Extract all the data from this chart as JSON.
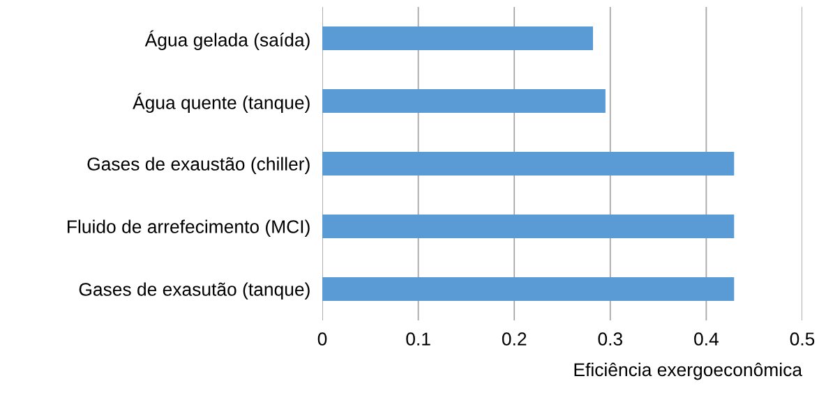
{
  "chart_data": {
    "type": "bar",
    "orientation": "horizontal",
    "categories": [
      "Água gelada (saída)",
      "Água quente (tanque)",
      "Gases de exaustão (chiller)",
      "Fluido de arrefecimento (MCI)",
      "Gases de exasutão (tanque)"
    ],
    "values": [
      0.282,
      0.295,
      0.429,
      0.429,
      0.429
    ],
    "color": "#5b9bd5",
    "xlim": [
      0,
      0.5
    ],
    "xticks": [
      0,
      0.1,
      0.2,
      0.3,
      0.4,
      0.5
    ],
    "xlabel": "Eficiência exergoeconômica",
    "grid": "x"
  }
}
